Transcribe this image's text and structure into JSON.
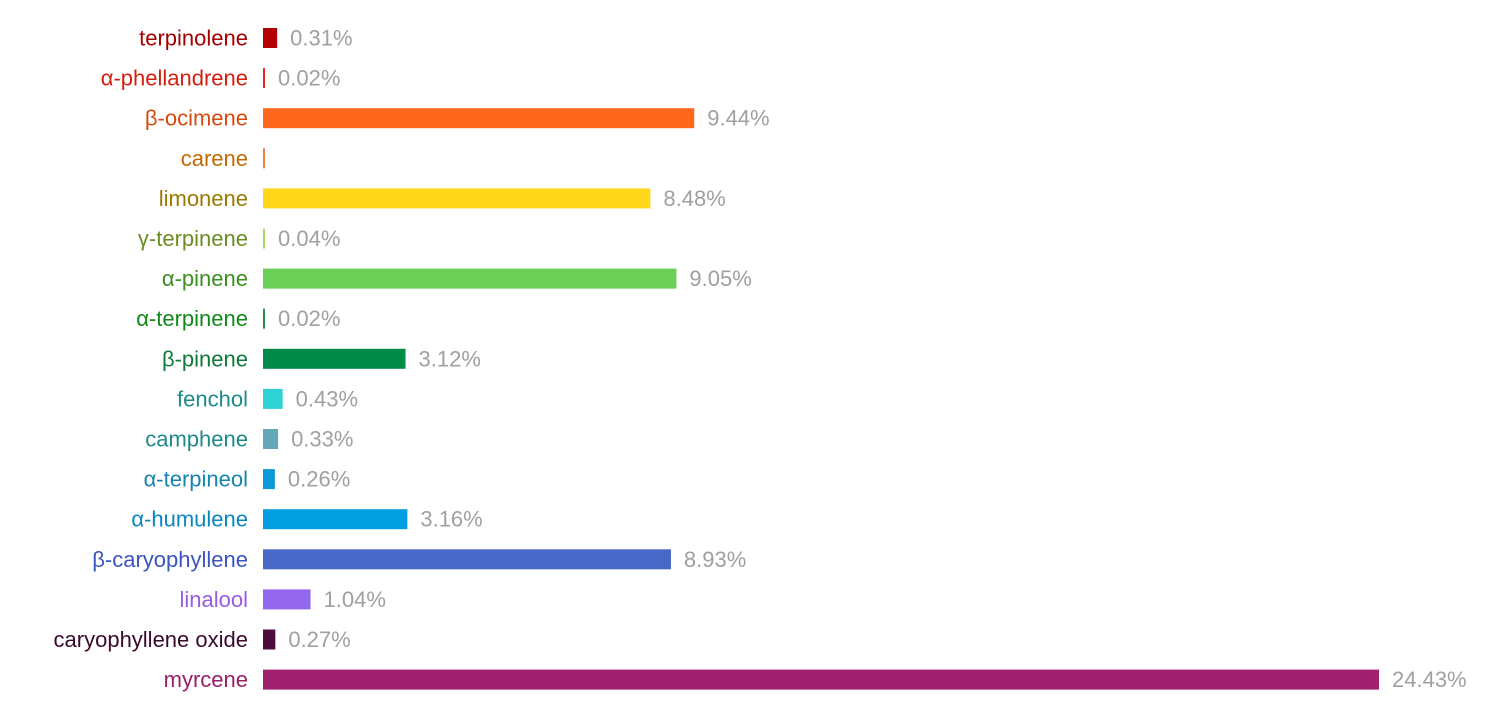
{
  "chart_data": {
    "type": "bar",
    "orientation": "horizontal",
    "unit": "%",
    "grid": false,
    "value_label_color": "#a0a0a0",
    "categories": [
      "terpinolene",
      "α-phellandrene",
      "β-ocimene",
      "carene",
      "limonene",
      "γ-terpinene",
      "α-pinene",
      "α-terpinene",
      "β-pinene",
      "fenchol",
      "camphene",
      "α-terpineol",
      "α-humulene",
      "β-caryophyllene",
      "linalool",
      "caryophyllene oxide",
      "myrcene"
    ],
    "values": [
      0.31,
      0.02,
      9.44,
      0,
      8.48,
      0.04,
      9.05,
      0.02,
      3.12,
      0.43,
      0.33,
      0.26,
      3.16,
      8.93,
      1.04,
      0.27,
      24.43
    ],
    "value_labels": [
      "0.31%",
      "0.02%",
      "9.44%",
      "",
      "8.48%",
      "0.04%",
      "9.05%",
      "0.02%",
      "3.12%",
      "0.43%",
      "0.33%",
      "0.26%",
      "3.16%",
      "8.93%",
      "1.04%",
      "0.27%",
      "24.43%"
    ],
    "bar_colors": [
      "#b30000",
      "#e8261b",
      "#ff671c",
      "#f08040",
      "#ffd619",
      "#a3d36b",
      "#6bcf56",
      "#2e8b57",
      "#008a4a",
      "#2ed3d6",
      "#64a8b8",
      "#0a9ad8",
      "#009fe0",
      "#4868c8",
      "#9468ee",
      "#4d0c3c",
      "#a0226e"
    ],
    "label_colors": [
      "#a50000",
      "#d41f10",
      "#d9480f",
      "#c46a00",
      "#9a7b00",
      "#6b8e23",
      "#3d8f1f",
      "#138a1a",
      "#0f7a3a",
      "#1f8a8a",
      "#1e8a8a",
      "#1585b0",
      "#0a86c0",
      "#3b54c0",
      "#9a5ae8",
      "#3a0a2e",
      "#9a1f68"
    ]
  }
}
